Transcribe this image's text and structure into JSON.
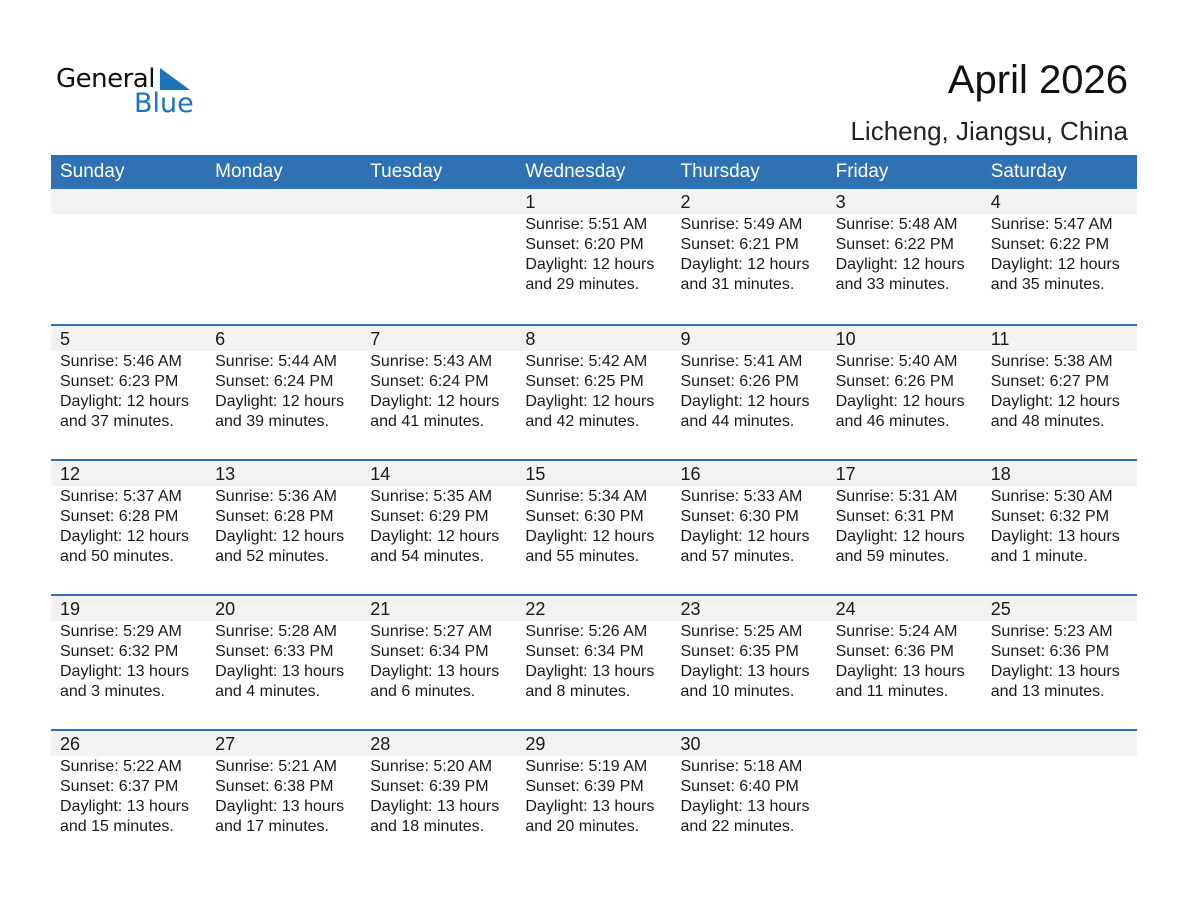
{
  "logo": {
    "word1": "General",
    "word2": "Blue",
    "color": "#1a73bb"
  },
  "header": {
    "title": "April 2026",
    "location": "Licheng, Jiangsu, China"
  },
  "colors": {
    "header_bg": "#2e72b3",
    "day_band": "#f2f2f2"
  },
  "weekdays": [
    "Sunday",
    "Monday",
    "Tuesday",
    "Wednesday",
    "Thursday",
    "Friday",
    "Saturday"
  ],
  "weeks": [
    [
      null,
      null,
      null,
      {
        "day": "1",
        "sunrise": "Sunrise: 5:51 AM",
        "sunset": "Sunset: 6:20 PM",
        "daylight": "Daylight: 12 hours",
        "minutes": "and 29 minutes."
      },
      {
        "day": "2",
        "sunrise": "Sunrise: 5:49 AM",
        "sunset": "Sunset: 6:21 PM",
        "daylight": "Daylight: 12 hours",
        "minutes": "and 31 minutes."
      },
      {
        "day": "3",
        "sunrise": "Sunrise: 5:48 AM",
        "sunset": "Sunset: 6:22 PM",
        "daylight": "Daylight: 12 hours",
        "minutes": "and 33 minutes."
      },
      {
        "day": "4",
        "sunrise": "Sunrise: 5:47 AM",
        "sunset": "Sunset: 6:22 PM",
        "daylight": "Daylight: 12 hours",
        "minutes": "and 35 minutes."
      }
    ],
    [
      {
        "day": "5",
        "sunrise": "Sunrise: 5:46 AM",
        "sunset": "Sunset: 6:23 PM",
        "daylight": "Daylight: 12 hours",
        "minutes": "and 37 minutes."
      },
      {
        "day": "6",
        "sunrise": "Sunrise: 5:44 AM",
        "sunset": "Sunset: 6:24 PM",
        "daylight": "Daylight: 12 hours",
        "minutes": "and 39 minutes."
      },
      {
        "day": "7",
        "sunrise": "Sunrise: 5:43 AM",
        "sunset": "Sunset: 6:24 PM",
        "daylight": "Daylight: 12 hours",
        "minutes": "and 41 minutes."
      },
      {
        "day": "8",
        "sunrise": "Sunrise: 5:42 AM",
        "sunset": "Sunset: 6:25 PM",
        "daylight": "Daylight: 12 hours",
        "minutes": "and 42 minutes."
      },
      {
        "day": "9",
        "sunrise": "Sunrise: 5:41 AM",
        "sunset": "Sunset: 6:26 PM",
        "daylight": "Daylight: 12 hours",
        "minutes": "and 44 minutes."
      },
      {
        "day": "10",
        "sunrise": "Sunrise: 5:40 AM",
        "sunset": "Sunset: 6:26 PM",
        "daylight": "Daylight: 12 hours",
        "minutes": "and 46 minutes."
      },
      {
        "day": "11",
        "sunrise": "Sunrise: 5:38 AM",
        "sunset": "Sunset: 6:27 PM",
        "daylight": "Daylight: 12 hours",
        "minutes": "and 48 minutes."
      }
    ],
    [
      {
        "day": "12",
        "sunrise": "Sunrise: 5:37 AM",
        "sunset": "Sunset: 6:28 PM",
        "daylight": "Daylight: 12 hours",
        "minutes": "and 50 minutes."
      },
      {
        "day": "13",
        "sunrise": "Sunrise: 5:36 AM",
        "sunset": "Sunset: 6:28 PM",
        "daylight": "Daylight: 12 hours",
        "minutes": "and 52 minutes."
      },
      {
        "day": "14",
        "sunrise": "Sunrise: 5:35 AM",
        "sunset": "Sunset: 6:29 PM",
        "daylight": "Daylight: 12 hours",
        "minutes": "and 54 minutes."
      },
      {
        "day": "15",
        "sunrise": "Sunrise: 5:34 AM",
        "sunset": "Sunset: 6:30 PM",
        "daylight": "Daylight: 12 hours",
        "minutes": "and 55 minutes."
      },
      {
        "day": "16",
        "sunrise": "Sunrise: 5:33 AM",
        "sunset": "Sunset: 6:30 PM",
        "daylight": "Daylight: 12 hours",
        "minutes": "and 57 minutes."
      },
      {
        "day": "17",
        "sunrise": "Sunrise: 5:31 AM",
        "sunset": "Sunset: 6:31 PM",
        "daylight": "Daylight: 12 hours",
        "minutes": "and 59 minutes."
      },
      {
        "day": "18",
        "sunrise": "Sunrise: 5:30 AM",
        "sunset": "Sunset: 6:32 PM",
        "daylight": "Daylight: 13 hours",
        "minutes": "and 1 minute."
      }
    ],
    [
      {
        "day": "19",
        "sunrise": "Sunrise: 5:29 AM",
        "sunset": "Sunset: 6:32 PM",
        "daylight": "Daylight: 13 hours",
        "minutes": "and 3 minutes."
      },
      {
        "day": "20",
        "sunrise": "Sunrise: 5:28 AM",
        "sunset": "Sunset: 6:33 PM",
        "daylight": "Daylight: 13 hours",
        "minutes": "and 4 minutes."
      },
      {
        "day": "21",
        "sunrise": "Sunrise: 5:27 AM",
        "sunset": "Sunset: 6:34 PM",
        "daylight": "Daylight: 13 hours",
        "minutes": "and 6 minutes."
      },
      {
        "day": "22",
        "sunrise": "Sunrise: 5:26 AM",
        "sunset": "Sunset: 6:34 PM",
        "daylight": "Daylight: 13 hours",
        "minutes": "and 8 minutes."
      },
      {
        "day": "23",
        "sunrise": "Sunrise: 5:25 AM",
        "sunset": "Sunset: 6:35 PM",
        "daylight": "Daylight: 13 hours",
        "minutes": "and 10 minutes."
      },
      {
        "day": "24",
        "sunrise": "Sunrise: 5:24 AM",
        "sunset": "Sunset: 6:36 PM",
        "daylight": "Daylight: 13 hours",
        "minutes": "and 11 minutes."
      },
      {
        "day": "25",
        "sunrise": "Sunrise: 5:23 AM",
        "sunset": "Sunset: 6:36 PM",
        "daylight": "Daylight: 13 hours",
        "minutes": "and 13 minutes."
      }
    ],
    [
      {
        "day": "26",
        "sunrise": "Sunrise: 5:22 AM",
        "sunset": "Sunset: 6:37 PM",
        "daylight": "Daylight: 13 hours",
        "minutes": "and 15 minutes."
      },
      {
        "day": "27",
        "sunrise": "Sunrise: 5:21 AM",
        "sunset": "Sunset: 6:38 PM",
        "daylight": "Daylight: 13 hours",
        "minutes": "and 17 minutes."
      },
      {
        "day": "28",
        "sunrise": "Sunrise: 5:20 AM",
        "sunset": "Sunset: 6:39 PM",
        "daylight": "Daylight: 13 hours",
        "minutes": "and 18 minutes."
      },
      {
        "day": "29",
        "sunrise": "Sunrise: 5:19 AM",
        "sunset": "Sunset: 6:39 PM",
        "daylight": "Daylight: 13 hours",
        "minutes": "and 20 minutes."
      },
      {
        "day": "30",
        "sunrise": "Sunrise: 5:18 AM",
        "sunset": "Sunset: 6:40 PM",
        "daylight": "Daylight: 13 hours",
        "minutes": "and 22 minutes."
      },
      null,
      null
    ]
  ]
}
